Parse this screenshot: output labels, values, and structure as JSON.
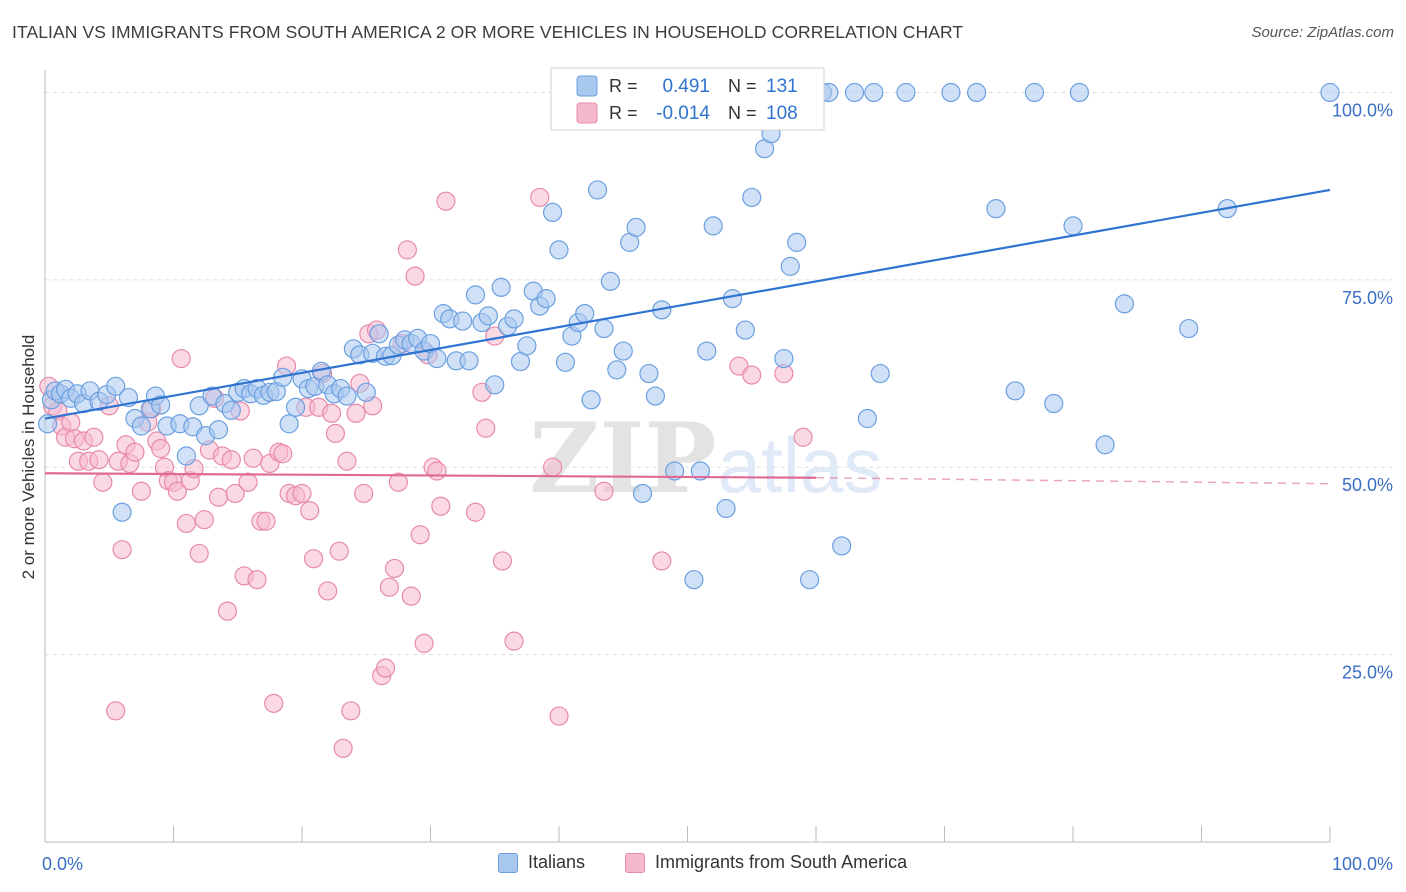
{
  "title": "ITALIAN VS IMMIGRANTS FROM SOUTH AMERICA 2 OR MORE VEHICLES IN HOUSEHOLD CORRELATION CHART",
  "source": "Source: ZipAtlas.com",
  "watermark": {
    "zip": "ZIP",
    "atlas": "atlas"
  },
  "colors": {
    "blue_fill": "#a9c8f0",
    "blue_stroke": "#6b9fe0",
    "blue_line": "#2f74d0",
    "pink_fill": "#f5b9cd",
    "pink_stroke": "#e88aab",
    "pink_line": "#e06a94",
    "axis_text": "#3a6fc4",
    "grid": "#dddddd"
  },
  "legend_box": {
    "rows": [
      {
        "r_label": "R =",
        "r_value": "0.491",
        "n_label": "N =",
        "n_value": "131"
      },
      {
        "r_label": "R =",
        "r_value": "-0.014",
        "n_label": "N =",
        "n_value": "108"
      }
    ]
  },
  "chart_data": {
    "type": "scatter",
    "title": "ITALIAN VS IMMIGRANTS FROM SOUTH AMERICA 2 OR MORE VEHICLES IN HOUSEHOLD CORRELATION CHART",
    "xlabel": "",
    "ylabel": "2 or more Vehicles in Household",
    "xlim": [
      0,
      100
    ],
    "ylim": [
      0,
      103
    ],
    "x_tick_labels": {
      "left": "0.0%",
      "right": "100.0%"
    },
    "y_ticks": [
      {
        "value": 25,
        "label": "25.0%"
      },
      {
        "value": 50,
        "label": "50.0%"
      },
      {
        "value": 75,
        "label": "75.0%"
      },
      {
        "value": 100,
        "label": "100.0%"
      }
    ],
    "legend_placement": "bottom",
    "series": [
      {
        "name": "Italians",
        "r": 0.491,
        "n": 131,
        "trend": {
          "x": [
            0,
            100
          ],
          "y": [
            56.5,
            87
          ]
        },
        "points": [
          [
            0.2,
            55.8
          ],
          [
            0.5,
            59
          ],
          [
            0.8,
            60.2
          ],
          [
            1.2,
            59.8
          ],
          [
            1.6,
            60.4
          ],
          [
            2.0,
            59.2
          ],
          [
            2.5,
            59.8
          ],
          [
            3.0,
            58.5
          ],
          [
            3.5,
            60.2
          ],
          [
            4.2,
            58.8
          ],
          [
            4.8,
            59.7
          ],
          [
            5.5,
            60.8
          ],
          [
            6.0,
            44
          ],
          [
            6.5,
            59.3
          ],
          [
            7.0,
            56.5
          ],
          [
            7.5,
            55.5
          ],
          [
            8.2,
            57.8
          ],
          [
            8.6,
            59.5
          ],
          [
            9.0,
            58.3
          ],
          [
            9.5,
            55.5
          ],
          [
            10.5,
            55.8
          ],
          [
            11.0,
            51.5
          ],
          [
            11.5,
            55.4
          ],
          [
            12.0,
            58.2
          ],
          [
            12.5,
            54.2
          ],
          [
            13.0,
            59.5
          ],
          [
            13.5,
            55
          ],
          [
            14.0,
            58.5
          ],
          [
            14.5,
            57.6
          ],
          [
            15.0,
            60
          ],
          [
            15.5,
            60.5
          ],
          [
            16.0,
            59.8
          ],
          [
            16.5,
            60.5
          ],
          [
            17.0,
            59.6
          ],
          [
            17.5,
            60
          ],
          [
            18.0,
            60.1
          ],
          [
            18.5,
            62
          ],
          [
            19.0,
            55.8
          ],
          [
            19.5,
            58
          ],
          [
            20.0,
            61.8
          ],
          [
            20.5,
            60.5
          ],
          [
            21.0,
            60.8
          ],
          [
            21.5,
            62.8
          ],
          [
            22.0,
            61
          ],
          [
            22.5,
            59.8
          ],
          [
            23.0,
            60.5
          ],
          [
            23.5,
            59.5
          ],
          [
            24.0,
            65.8
          ],
          [
            24.5,
            65
          ],
          [
            25.0,
            60
          ],
          [
            25.5,
            65.2
          ],
          [
            26.0,
            67.8
          ],
          [
            26.5,
            64.8
          ],
          [
            27.0,
            64.9
          ],
          [
            27.5,
            66.3
          ],
          [
            28.0,
            67
          ],
          [
            28.5,
            66.5
          ],
          [
            29.0,
            67.2
          ],
          [
            29.5,
            65.5
          ],
          [
            30.0,
            66.5
          ],
          [
            30.5,
            64.5
          ],
          [
            31.0,
            70.5
          ],
          [
            31.5,
            69.8
          ],
          [
            32.0,
            64.2
          ],
          [
            32.5,
            69.5
          ],
          [
            33.0,
            64.2
          ],
          [
            33.5,
            73
          ],
          [
            34.0,
            69.3
          ],
          [
            34.5,
            70.2
          ],
          [
            35.0,
            61
          ],
          [
            35.5,
            74
          ],
          [
            36.0,
            68.8
          ],
          [
            36.5,
            69.8
          ],
          [
            37.0,
            64.1
          ],
          [
            37.5,
            66.2
          ],
          [
            38.0,
            73.5
          ],
          [
            38.5,
            71.5
          ],
          [
            39.0,
            72.5
          ],
          [
            39.5,
            84
          ],
          [
            40.0,
            79
          ],
          [
            40.5,
            64
          ],
          [
            41.0,
            67.5
          ],
          [
            41.5,
            69.3
          ],
          [
            42.0,
            70.5
          ],
          [
            42.5,
            59
          ],
          [
            43.0,
            87
          ],
          [
            43.5,
            68.5
          ],
          [
            44.0,
            74.8
          ],
          [
            44.5,
            63
          ],
          [
            45.0,
            65.5
          ],
          [
            45.5,
            80
          ],
          [
            46.0,
            82
          ],
          [
            46.5,
            46.5
          ],
          [
            47.0,
            62.5
          ],
          [
            47.5,
            59.5
          ],
          [
            48.0,
            71
          ],
          [
            49.0,
            49.5
          ],
          [
            49.5,
            100
          ],
          [
            50.5,
            35
          ],
          [
            51.0,
            49.5
          ],
          [
            51.5,
            65.5
          ],
          [
            52.0,
            82.2
          ],
          [
            53.0,
            44.5
          ],
          [
            53.5,
            72.5
          ],
          [
            54.5,
            68.3
          ],
          [
            55.0,
            86
          ],
          [
            55.5,
            100
          ],
          [
            56.0,
            92.5
          ],
          [
            56.5,
            94.5
          ],
          [
            57.5,
            64.5
          ],
          [
            58.0,
            76.8
          ],
          [
            58.5,
            80
          ],
          [
            59.5,
            35
          ],
          [
            60.5,
            100
          ],
          [
            61.0,
            100
          ],
          [
            62.0,
            39.5
          ],
          [
            63.0,
            100
          ],
          [
            64.0,
            56.5
          ],
          [
            64.5,
            100
          ],
          [
            65.0,
            62.5
          ],
          [
            67.0,
            100
          ],
          [
            70.5,
            100
          ],
          [
            72.5,
            100
          ],
          [
            74.0,
            84.5
          ],
          [
            75.5,
            60.2
          ],
          [
            77.0,
            100
          ],
          [
            78.5,
            58.5
          ],
          [
            80.0,
            82.2
          ],
          [
            80.5,
            100
          ],
          [
            82.5,
            53
          ],
          [
            84.0,
            71.8
          ],
          [
            89.0,
            68.5
          ],
          [
            92.0,
            84.5
          ],
          [
            100.0,
            100
          ]
        ]
      },
      {
        "name": "Immigrants from South America",
        "r": -0.014,
        "n": 108,
        "trend": {
          "x": [
            0,
            60
          ],
          "y": [
            49.2,
            48.6
          ]
        },
        "trend_dashed": {
          "x": [
            60,
            100
          ],
          "y": [
            48.6,
            47.8
          ]
        },
        "points": [
          [
            0.3,
            60.8
          ],
          [
            0.6,
            58.2
          ],
          [
            1.0,
            57.5
          ],
          [
            1.3,
            55.5
          ],
          [
            1.6,
            54
          ],
          [
            2.0,
            56
          ],
          [
            2.3,
            53.8
          ],
          [
            2.6,
            50.8
          ],
          [
            3.0,
            53.5
          ],
          [
            3.4,
            50.8
          ],
          [
            3.8,
            54
          ],
          [
            4.2,
            51
          ],
          [
            4.5,
            48
          ],
          [
            5.0,
            58.2
          ],
          [
            5.5,
            17.5
          ],
          [
            5.7,
            50.8
          ],
          [
            6.0,
            39
          ],
          [
            6.3,
            53
          ],
          [
            6.6,
            50.5
          ],
          [
            7.0,
            52
          ],
          [
            7.5,
            46.8
          ],
          [
            8.0,
            56
          ],
          [
            8.3,
            57.8
          ],
          [
            8.7,
            53.5
          ],
          [
            9.0,
            52.5
          ],
          [
            9.3,
            50
          ],
          [
            9.6,
            48.2
          ],
          [
            10.0,
            48
          ],
          [
            10.3,
            46.8
          ],
          [
            10.6,
            64.5
          ],
          [
            11.0,
            42.5
          ],
          [
            11.3,
            48.2
          ],
          [
            11.6,
            49.8
          ],
          [
            12.0,
            38.5
          ],
          [
            12.4,
            43
          ],
          [
            12.8,
            52.3
          ],
          [
            13.2,
            59.2
          ],
          [
            13.5,
            46
          ],
          [
            13.8,
            51.5
          ],
          [
            14.2,
            30.8
          ],
          [
            14.5,
            51
          ],
          [
            14.8,
            46.5
          ],
          [
            15.2,
            57.5
          ],
          [
            15.5,
            35.5
          ],
          [
            15.8,
            48
          ],
          [
            16.2,
            51.2
          ],
          [
            16.5,
            35
          ],
          [
            16.8,
            42.8
          ],
          [
            17.2,
            42.8
          ],
          [
            17.5,
            50.5
          ],
          [
            17.8,
            18.5
          ],
          [
            18.2,
            52
          ],
          [
            18.5,
            51.8
          ],
          [
            18.8,
            63.5
          ],
          [
            19.0,
            46.5
          ],
          [
            19.5,
            46.2
          ],
          [
            20.0,
            46.5
          ],
          [
            20.3,
            58
          ],
          [
            20.6,
            44.2
          ],
          [
            20.9,
            37.8
          ],
          [
            21.3,
            58
          ],
          [
            21.6,
            62.5
          ],
          [
            22.0,
            33.5
          ],
          [
            22.3,
            57.2
          ],
          [
            22.6,
            54.5
          ],
          [
            22.9,
            38.8
          ],
          [
            23.2,
            12.5
          ],
          [
            23.5,
            50.8
          ],
          [
            23.8,
            17.5
          ],
          [
            24.2,
            57.2
          ],
          [
            24.5,
            61.2
          ],
          [
            24.8,
            46.5
          ],
          [
            25.2,
            67.8
          ],
          [
            25.5,
            58.2
          ],
          [
            25.8,
            68.3
          ],
          [
            26.2,
            22.2
          ],
          [
            26.5,
            23.2
          ],
          [
            26.8,
            34
          ],
          [
            27.2,
            36.5
          ],
          [
            27.5,
            48
          ],
          [
            27.8,
            66.5
          ],
          [
            28.2,
            79
          ],
          [
            28.5,
            32.8
          ],
          [
            28.8,
            75.5
          ],
          [
            29.2,
            41
          ],
          [
            29.5,
            26.5
          ],
          [
            29.8,
            65
          ],
          [
            30.2,
            50
          ],
          [
            30.5,
            49.5
          ],
          [
            30.8,
            44.8
          ],
          [
            31.2,
            85.5
          ],
          [
            33.5,
            44
          ],
          [
            34.0,
            60
          ],
          [
            34.3,
            55.2
          ],
          [
            35.0,
            67.5
          ],
          [
            35.6,
            37.5
          ],
          [
            36.5,
            26.8
          ],
          [
            38.5,
            86
          ],
          [
            39.5,
            50
          ],
          [
            40.0,
            16.8
          ],
          [
            43.5,
            46.8
          ],
          [
            48.0,
            37.5
          ],
          [
            54.0,
            63.5
          ],
          [
            55.0,
            62.3
          ],
          [
            59.0,
            54
          ],
          [
            57.5,
            62.5
          ]
        ]
      }
    ]
  }
}
